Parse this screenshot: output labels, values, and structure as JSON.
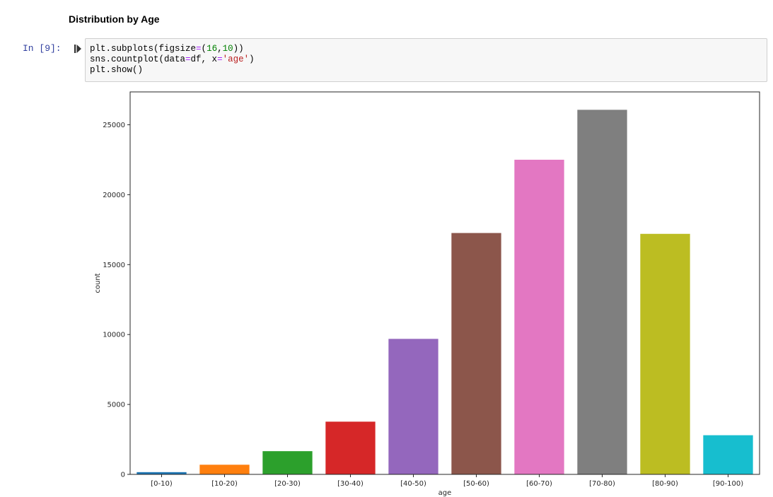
{
  "heading": "Distribution by Age",
  "cell": {
    "prompt": "In [9]:",
    "run_icon": "run-cell-icon",
    "code": [
      [
        {
          "t": "plt.subplots(figsize"
        },
        {
          "t": "=",
          "c": "op"
        },
        {
          "t": "("
        },
        {
          "t": "16",
          "c": "num"
        },
        {
          "t": ","
        },
        {
          "t": "10",
          "c": "num"
        },
        {
          "t": "))"
        }
      ],
      [
        {
          "t": "sns.countplot(data"
        },
        {
          "t": "=",
          "c": "op"
        },
        {
          "t": "df, x"
        },
        {
          "t": "=",
          "c": "op"
        },
        {
          "t": "'age'",
          "c": "str"
        },
        {
          "t": ")"
        }
      ],
      [
        {
          "t": "plt.show()"
        }
      ]
    ]
  },
  "chart_data": {
    "type": "bar",
    "categories": [
      "[0-10)",
      "[10-20)",
      "[20-30)",
      "[30-40)",
      "[40-50)",
      "[50-60)",
      "[60-70)",
      "[70-80)",
      "[80-90)",
      "[90-100)"
    ],
    "values": [
      160,
      690,
      1660,
      3770,
      9690,
      17260,
      22500,
      26070,
      17200,
      2800
    ],
    "colors": [
      "#1f77b4",
      "#ff7f0e",
      "#2ca02c",
      "#d62728",
      "#9467bd",
      "#8c564b",
      "#e377c2",
      "#7f7f7f",
      "#bcbd22",
      "#17becf"
    ],
    "xlabel": "age",
    "ylabel": "count",
    "yticks": [
      0,
      5000,
      10000,
      15000,
      20000,
      25000
    ],
    "ylim": [
      0,
      27350
    ],
    "grid": false
  }
}
